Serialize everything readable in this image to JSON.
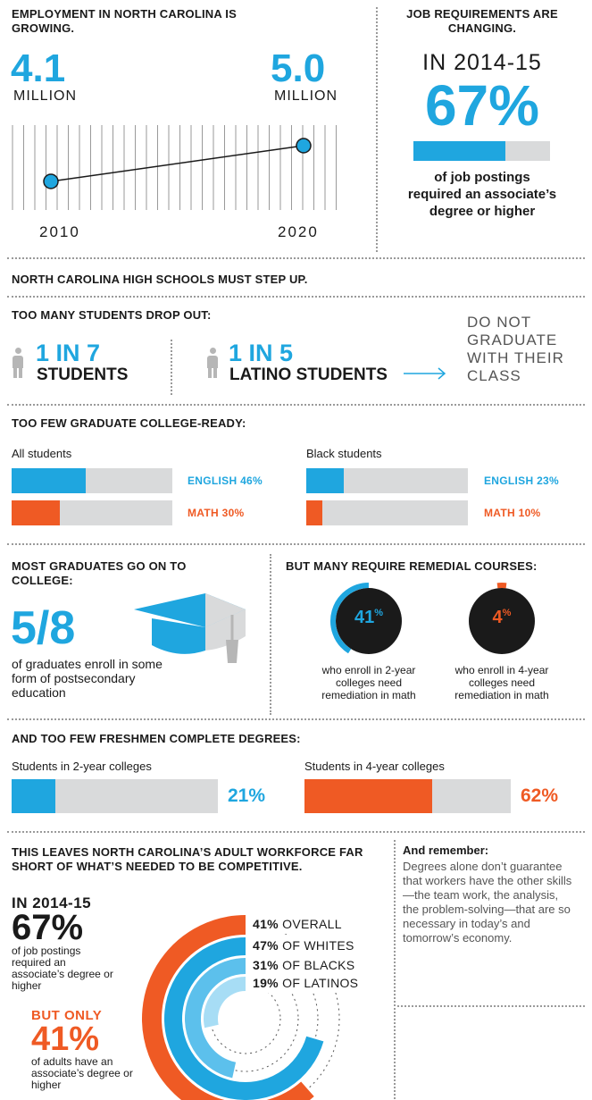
{
  "employment": {
    "heading": "EMPLOYMENT IN NORTH CAROLINA IS GROWING.",
    "start_value": "4.1",
    "start_unit": "MILLION",
    "end_value": "5.0",
    "end_unit": "MILLION",
    "start_year": "2010",
    "end_year": "2020"
  },
  "job_requirements": {
    "heading": "JOB REQUIREMENTS ARE CHANGING.",
    "period": "IN 2014-15",
    "percent": "67%",
    "fraction": 0.67,
    "caption": "of job postings required an associate’s degree or higher"
  },
  "high_schools": {
    "heading": "NORTH CAROLINA HIGH SCHOOLS MUST STEP UP."
  },
  "dropout": {
    "heading": "TOO MANY STUDENTS DROP OUT:",
    "stat1_ratio": "1 IN 7",
    "stat1_label": "STUDENTS",
    "stat2_ratio": "1 IN 5",
    "stat2_label": "LATINO STUDENTS",
    "outcome": "DO NOT GRADUATE WITH THEIR CLASS"
  },
  "college_ready": {
    "heading": "TOO FEW GRADUATE COLLEGE-READY:",
    "groups": [
      {
        "label": "All students",
        "english_label": "ENGLISH 46%",
        "english": 0.46,
        "math_label": "MATH 30%",
        "math": 0.3
      },
      {
        "label": "Black students",
        "english_label": "ENGLISH 23%",
        "english": 0.23,
        "math_label": "MATH 10%",
        "math": 0.1
      }
    ]
  },
  "college_enroll": {
    "heading": "MOST GRADUATES GO ON TO COLLEGE:",
    "fraction": "5/8",
    "caption": "of graduates enroll in some form of postsecondary education"
  },
  "remedial": {
    "heading": "BUT MANY REQUIRE REMEDIAL COURSES:",
    "items": [
      {
        "value": "41",
        "pct_sign": "%",
        "fraction": 0.41,
        "caption": "who enroll in 2-year colleges need remediation in math"
      },
      {
        "value": "4",
        "pct_sign": "%",
        "fraction": 0.04,
        "caption": "who enroll in 4-year colleges need remediation in math"
      }
    ]
  },
  "degrees": {
    "heading": "AND TOO FEW FRESHMEN COMPLETE DEGREES:",
    "items": [
      {
        "label": "Students in 2-year colleges",
        "value_label": "21%",
        "fraction": 0.21
      },
      {
        "label": "Students in 4-year colleges",
        "value_label": "62%",
        "fraction": 0.62
      }
    ]
  },
  "workforce": {
    "heading": "THIS LEAVES NORTH CAROLINA’S ADULT WORKFORCE FAR SHORT OF WHAT’S NEEDED TO BE COMPETITIVE.",
    "period": "IN 2014-15",
    "percent": "67%",
    "caption": "of job postings required an associate’s degree or higher",
    "but_only": "BUT ONLY",
    "adult_percent": "41%",
    "adult_caption": "of adults have an associate’s degree or higher",
    "rings": [
      {
        "pct": "41%",
        "label": "OVERALL",
        "fraction": 0.41,
        "color": "#ef5a24"
      },
      {
        "pct": "47%",
        "label": "OF WHITES",
        "fraction": 0.47,
        "color": "#1fa6df"
      },
      {
        "pct": "31%",
        "label": "OF BLACKS",
        "fraction": 0.31,
        "color": "#5cc0ec"
      },
      {
        "pct": "19%",
        "label": "OF LATINOS",
        "fraction": 0.19,
        "color": "#a7ddf5"
      }
    ]
  },
  "remember": {
    "heading": "And remember:",
    "body": "Degrees alone don’t guarantee that workers have the other skills—the team work, the analysis, the problem-solving—that are so necessary in today’s and tomorrow’s economy."
  },
  "colors": {
    "blue": "#1fa6df",
    "orange": "#ef5a24",
    "gray": "#d9dadb"
  }
}
